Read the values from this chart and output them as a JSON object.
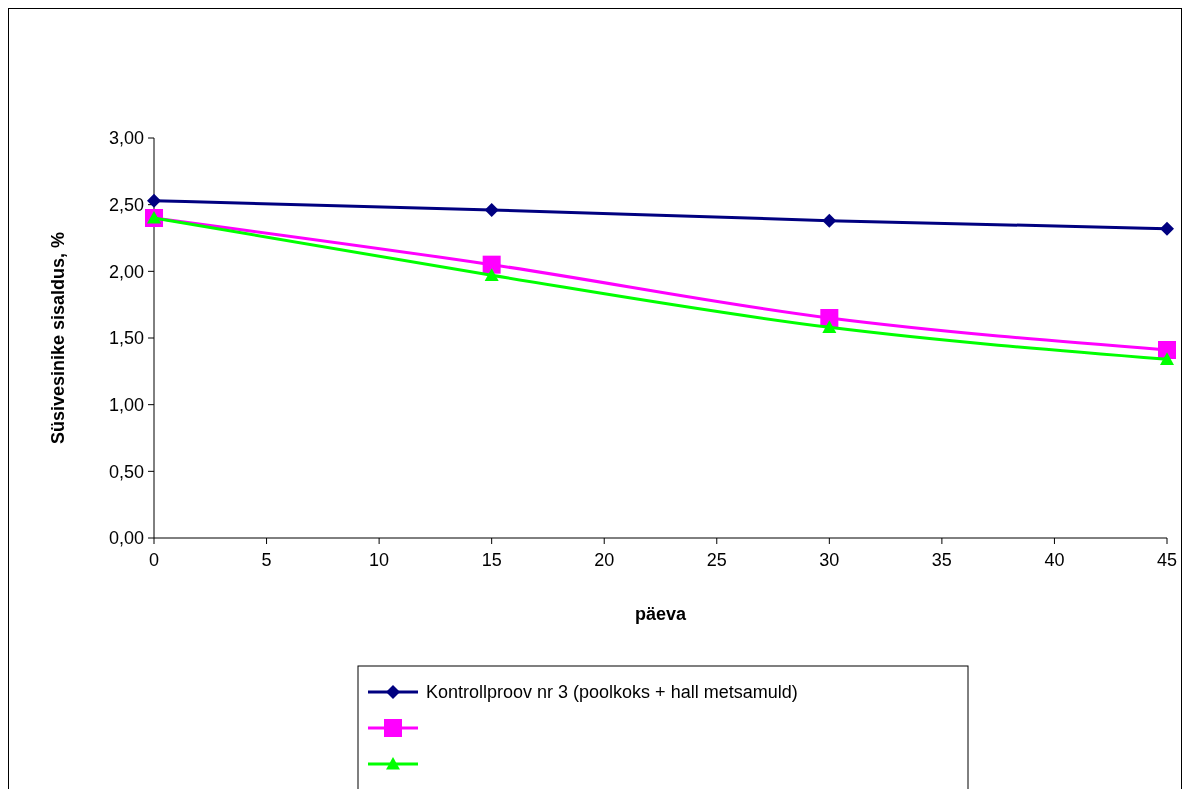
{
  "chart_data": {
    "type": "line",
    "xlabel": "päeva",
    "ylabel": "Süsivesinike sisaldus, %",
    "x": [
      0,
      15,
      30,
      45
    ],
    "series": [
      {
        "name": "Kontrollproov nr 3 (poolkoks + hall metsamuld)",
        "color": "#000080",
        "marker": "diamond",
        "values": [
          2.53,
          2.46,
          2.38,
          2.32
        ]
      },
      {
        "color": "#ff00ff",
        "marker": "square",
        "values": [
          2.4,
          2.05,
          1.65,
          1.41
        ]
      },
      {
        "color": "#00ff00",
        "marker": "triangle",
        "values": [
          2.4,
          1.97,
          1.58,
          1.34
        ]
      }
    ],
    "xlim": [
      0,
      45
    ],
    "xticks": [
      0,
      5,
      10,
      15,
      20,
      25,
      30,
      35,
      40,
      45
    ],
    "ylim": [
      0,
      3
    ],
    "yticks": [
      {
        "value": 0,
        "label": "0,00"
      },
      {
        "value": 0.5,
        "label": "0,50"
      },
      {
        "value": 1,
        "label": "1,00"
      },
      {
        "value": 1.5,
        "label": "1,50"
      },
      {
        "value": 2,
        "label": "2,00"
      },
      {
        "value": 2.5,
        "label": "2,50"
      },
      {
        "value": 3,
        "label": "3,00"
      }
    ],
    "grid": false,
    "legend": "bottom",
    "line_style": "solid"
  }
}
